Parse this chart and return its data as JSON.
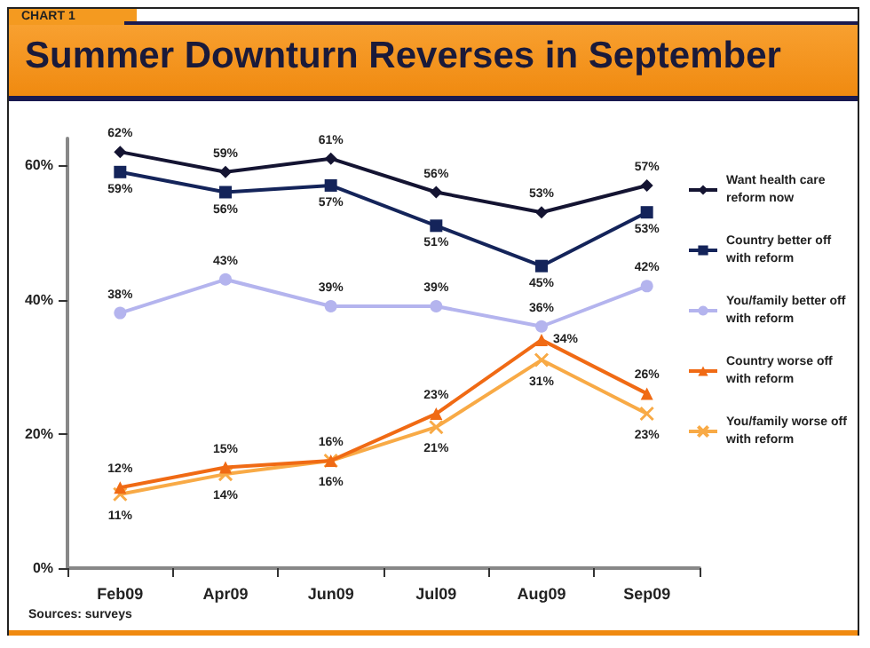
{
  "chart_data": {
    "type": "line",
    "title": "Summer Downturn Reverses in September",
    "subtitle": "CHART 1",
    "categories": [
      "Feb09",
      "Apr09",
      "Jun09",
      "Jul09",
      "Aug09",
      "Sep09"
    ],
    "series": [
      {
        "name": "Want health care reform now",
        "color": "#141432",
        "marker": "diamond",
        "values": [
          62,
          59,
          61,
          56,
          53,
          57
        ],
        "value_labels": [
          "62%",
          "59%",
          "61%",
          "56%",
          "53%",
          "57%"
        ]
      },
      {
        "name": "Country better off with reform",
        "color": "#14245a",
        "marker": "square",
        "values": [
          59,
          56,
          57,
          51,
          45,
          53
        ],
        "value_labels": [
          "59%",
          "56%",
          "57%",
          "51%",
          "45%",
          "53%"
        ]
      },
      {
        "name": "You/family better off with reform",
        "color": "#b4b4ee",
        "marker": "circle",
        "values": [
          38,
          43,
          39,
          39,
          36,
          42
        ],
        "value_labels": [
          "38%",
          "43%",
          "39%",
          "39%",
          "36%",
          "42%"
        ]
      },
      {
        "name": "Country worse off with reform",
        "color": "#f06a14",
        "marker": "triangle",
        "values": [
          12,
          15,
          16,
          23,
          34,
          26
        ],
        "value_labels": [
          "12%",
          "15%",
          "16%",
          "23%",
          "34%",
          "26%"
        ]
      },
      {
        "name": "You/family worse off with reform",
        "color": "#f8aa46",
        "marker": "cross",
        "values": [
          11,
          14,
          16,
          21,
          31,
          23
        ],
        "value_labels": [
          "11%",
          "14%",
          "16%",
          "21%",
          "31%",
          "23%"
        ]
      }
    ],
    "ylim": [
      0,
      64
    ],
    "yticks": [
      {
        "value": 0,
        "label": "0%"
      },
      {
        "value": 20,
        "label": "20%"
      },
      {
        "value": 40,
        "label": "40%"
      },
      {
        "value": 60,
        "label": "60%"
      }
    ],
    "legend": "right",
    "line_style": "solid",
    "annotations": [
      "Sources: surveys"
    ]
  }
}
